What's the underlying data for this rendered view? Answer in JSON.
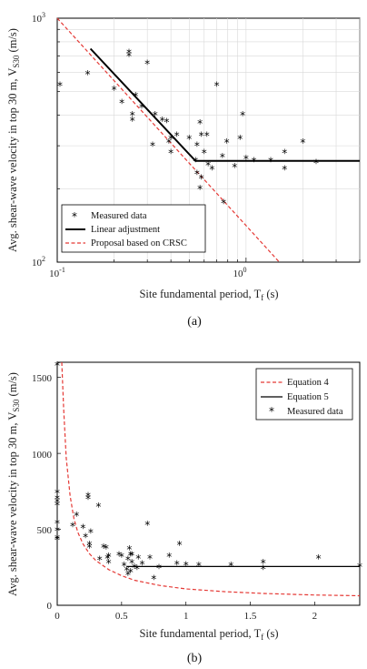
{
  "chart_data": [
    {
      "type": "scatter",
      "panel_label": "(a)",
      "xlabel_main": "Site fundamental period, T",
      "xlabel_sub": "f",
      "xlabel_unit": " (s)",
      "ylabel_main": "Avg. shear-wave velocity in top 30 m, V",
      "ylabel_sub": "S30",
      "ylabel_unit": " (m/s)",
      "xscale": "log",
      "yscale": "log",
      "xlim": [
        0.1,
        4
      ],
      "ylim": [
        100,
        1000
      ],
      "grid": true,
      "legend_placement": "bottom-left",
      "xticks": [
        {
          "value": 0.1,
          "base": "10",
          "exp": "-1"
        },
        {
          "value": 1,
          "base": "10",
          "exp": "0"
        }
      ],
      "yticks": [
        {
          "value": 100,
          "base": "10",
          "exp": "2"
        },
        {
          "value": 1000,
          "base": "10",
          "exp": "3"
        }
      ],
      "legend": [
        {
          "label": "Measured data",
          "kind": "marker"
        },
        {
          "label": "Linear adjustment",
          "kind": "solid"
        },
        {
          "label": "Proposal based on CRSC",
          "kind": "dashed"
        }
      ],
      "measured_color": "#000000",
      "fit_color": "#000000",
      "crsc_color": "#e53935",
      "linear_adjustment": {
        "x": [
          0.15,
          0.54,
          4
        ],
        "y": [
          750,
          260,
          260
        ]
      },
      "crsc_proposal": {
        "x": [
          0.1,
          1.5
        ],
        "y": [
          1000,
          100
        ]
      },
      "measured_points": {
        "x": [
          0.102,
          0.145,
          0.2,
          0.22,
          0.24,
          0.24,
          0.25,
          0.25,
          0.26,
          0.28,
          0.3,
          0.32,
          0.33,
          0.36,
          0.38,
          0.39,
          0.4,
          0.4,
          0.43,
          0.5,
          0.54,
          0.55,
          0.55,
          0.57,
          0.57,
          0.58,
          0.58,
          0.6,
          0.62,
          0.63,
          0.66,
          0.7,
          0.75,
          0.76,
          0.79,
          0.87,
          0.93,
          0.96,
          1.0,
          1.1,
          1.35,
          1.6,
          1.6,
          2.0,
          2.35
        ],
        "y": [
          530,
          590,
          510,
          450,
          720,
          700,
          380,
          400,
          480,
          430,
          650,
          300,
          400,
          380,
          375,
          310,
          320,
          280,
          330,
          320,
          260,
          230,
          300,
          200,
          370,
          220,
          330,
          280,
          330,
          250,
          240,
          530,
          270,
          175,
          310,
          245,
          320,
          400,
          265,
          260,
          260,
          280,
          240,
          310,
          255
        ]
      }
    },
    {
      "type": "scatter",
      "panel_label": "(b)",
      "xlabel_main": "Site fundamental period, T",
      "xlabel_sub": "f",
      "xlabel_unit": " (s)",
      "ylabel_main": "Avg. shear-wave velocity in top 30 m, V",
      "ylabel_sub": "S30",
      "ylabel_unit": " (m/s)",
      "xscale": "linear",
      "yscale": "linear",
      "xlim": [
        0,
        2.35
      ],
      "ylim": [
        0,
        1600
      ],
      "grid": false,
      "legend_placement": "top-right",
      "xticks": [
        {
          "value": 0,
          "label": "0"
        },
        {
          "value": 0.5,
          "label": "0.5"
        },
        {
          "value": 1,
          "label": "1"
        },
        {
          "value": 1.5,
          "label": "1.5"
        },
        {
          "value": 2,
          "label": "2"
        }
      ],
      "yticks": [
        {
          "value": 0,
          "label": "0"
        },
        {
          "value": 500,
          "label": "500"
        },
        {
          "value": 1000,
          "label": "1000"
        },
        {
          "value": 1500,
          "label": "1500"
        }
      ],
      "legend": [
        {
          "label": "Equation 4",
          "kind": "dashed"
        },
        {
          "label": "Equation 5",
          "kind": "solid"
        },
        {
          "label": "Measured data",
          "kind": "marker"
        }
      ],
      "eq4_color": "#e53935",
      "eq5_color": "#000000",
      "measured_color": "#000000",
      "equation_4": {
        "x": [
          0.035,
          0.05,
          0.07,
          0.1,
          0.13,
          0.16,
          0.2,
          0.25,
          0.3,
          0.4,
          0.5,
          0.6,
          0.8,
          1.0,
          1.3,
          1.6,
          2.0,
          2.35
        ],
        "y": [
          1600,
          1290,
          970,
          720,
          570,
          480,
          405,
          340,
          295,
          235,
          195,
          165,
          130,
          108,
          90,
          78,
          68,
          63
        ]
      },
      "equation_5": {
        "x": [
          0.54,
          2.35
        ],
        "y": [
          255,
          255
        ]
      },
      "measured_points": {
        "x": [
          0.0,
          0.0,
          0.0,
          0.0,
          0.0,
          0.0,
          0.0,
          0.0,
          0.0,
          0.12,
          0.15,
          0.2,
          0.22,
          0.24,
          0.24,
          0.25,
          0.25,
          0.26,
          0.32,
          0.33,
          0.36,
          0.38,
          0.39,
          0.4,
          0.4,
          0.48,
          0.5,
          0.52,
          0.54,
          0.55,
          0.55,
          0.56,
          0.57,
          0.57,
          0.58,
          0.58,
          0.6,
          0.62,
          0.63,
          0.66,
          0.7,
          0.72,
          0.75,
          0.79,
          0.87,
          0.93,
          0.95,
          1.0,
          1.1,
          1.35,
          1.6,
          1.6,
          2.03,
          2.35
        ],
        "y": [
          1580,
          740,
          700,
          680,
          660,
          540,
          490,
          440,
          430,
          520,
          590,
          510,
          450,
          720,
          700,
          380,
          400,
          480,
          650,
          300,
          380,
          375,
          310,
          320,
          280,
          330,
          320,
          260,
          230,
          300,
          200,
          370,
          220,
          330,
          280,
          330,
          250,
          240,
          310,
          270,
          530,
          310,
          175,
          245,
          320,
          270,
          400,
          265,
          260,
          260,
          280,
          240,
          310,
          255
        ]
      }
    }
  ]
}
